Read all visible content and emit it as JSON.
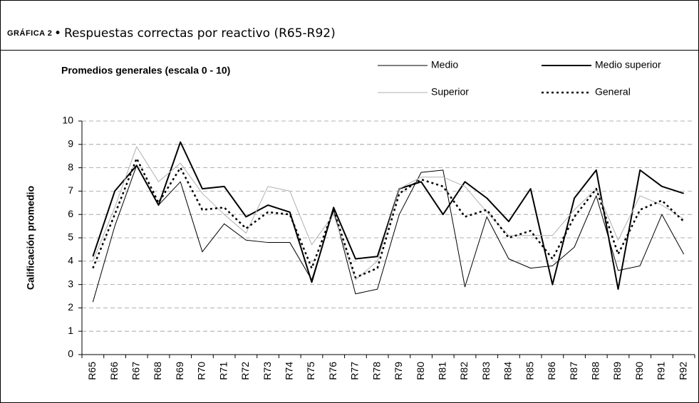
{
  "chart_data": {
    "type": "line",
    "label": "GRÁFICA 2",
    "separator": "•",
    "header": "Respuestas correctas por reactivo (R65-R92)",
    "title": "Promedios generales (escala 0 - 10)",
    "ylabel": "Calificación promedio",
    "categories": [
      "R65",
      "R66",
      "R67",
      "R68",
      "R69",
      "R70",
      "R71",
      "R72",
      "R73",
      "R74",
      "R75",
      "R76",
      "R77",
      "R78",
      "R79",
      "R80",
      "R81",
      "R82",
      "R83",
      "R84",
      "R85",
      "R86",
      "R87",
      "R88",
      "R89",
      "R90",
      "R91",
      "R92"
    ],
    "series": [
      {
        "name": "Medio",
        "color": "#000000",
        "values": [
          2.25,
          5.5,
          8.1,
          6.4,
          7.4,
          4.4,
          5.6,
          4.9,
          4.8,
          4.8,
          3.2,
          6.2,
          2.6,
          2.8,
          6.0,
          7.8,
          7.9,
          2.9,
          5.9,
          4.1,
          3.7,
          3.8,
          4.6,
          6.8,
          3.6,
          3.8,
          6.0,
          4.3
        ]
      },
      {
        "name": "Medio superior",
        "color": "#000000",
        "values": [
          4.2,
          7.0,
          8.1,
          6.4,
          9.1,
          7.1,
          7.2,
          5.9,
          6.4,
          6.1,
          3.1,
          6.3,
          4.1,
          4.2,
          7.1,
          7.4,
          6.0,
          7.4,
          6.7,
          5.7,
          7.1,
          3.0,
          6.7,
          7.9,
          2.8,
          7.9,
          7.2,
          6.9
        ]
      },
      {
        "name": "Superior",
        "color": "#b0b0b0",
        "values": [
          4.0,
          6.3,
          8.9,
          7.4,
          8.2,
          6.9,
          6.0,
          5.2,
          7.2,
          7.0,
          4.7,
          6.0,
          3.2,
          4.0,
          7.1,
          7.6,
          7.6,
          7.2,
          6.1,
          5.1,
          5.1,
          5.1,
          6.2,
          7.1,
          4.9,
          6.8,
          6.4,
          5.8
        ]
      },
      {
        "name": "General",
        "color": "#000000",
        "values": [
          3.7,
          6.0,
          8.4,
          6.5,
          8.0,
          6.2,
          6.3,
          5.4,
          6.1,
          6.0,
          3.7,
          6.2,
          3.3,
          3.7,
          6.9,
          7.5,
          7.2,
          5.9,
          6.2,
          5.0,
          5.3,
          4.1,
          5.9,
          7.1,
          4.3,
          6.2,
          6.6,
          5.7
        ]
      }
    ],
    "ylim": [
      0,
      10
    ],
    "yticks": [
      0,
      1,
      2,
      3,
      4,
      5,
      6,
      7,
      8,
      9,
      10
    ],
    "grid": true,
    "legend": "top-right"
  }
}
